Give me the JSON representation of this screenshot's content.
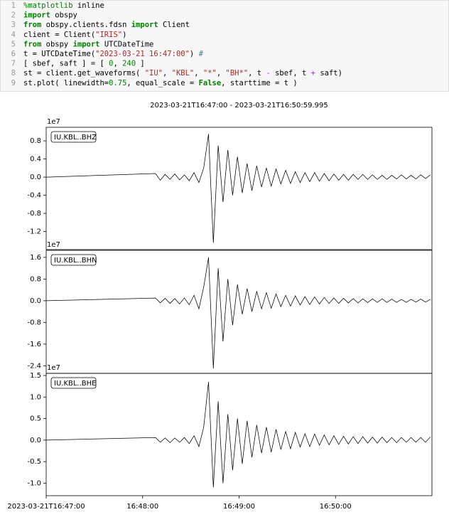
{
  "code": {
    "lines": [
      {
        "n": 1,
        "parts": [
          {
            "t": "%matplotlib",
            "c": "#008000"
          },
          {
            "t": " inline"
          }
        ]
      },
      {
        "n": 2,
        "parts": [
          {
            "t": "import",
            "c": "#008000",
            "b": true
          },
          {
            "t": " obspy"
          }
        ]
      },
      {
        "n": 3,
        "parts": [
          {
            "t": "from",
            "c": "#008000",
            "b": true
          },
          {
            "t": " obspy.clients.fdsn "
          },
          {
            "t": "import",
            "c": "#008000",
            "b": true
          },
          {
            "t": " Client"
          }
        ]
      },
      {
        "n": 4,
        "parts": [
          {
            "t": "client = Client("
          },
          {
            "t": "\"IRIS\"",
            "c": "#BA2121"
          },
          {
            "t": ")"
          }
        ]
      },
      {
        "n": 5,
        "parts": [
          {
            "t": "from",
            "c": "#008000",
            "b": true
          },
          {
            "t": " obspy "
          },
          {
            "t": "import",
            "c": "#008000",
            "b": true
          },
          {
            "t": " UTCDateTime"
          }
        ]
      },
      {
        "n": 6,
        "parts": [
          {
            "t": "t = UTCDateTime("
          },
          {
            "t": "\"2023-03-21 16:47:00\"",
            "c": "#BA2121"
          },
          {
            "t": ") "
          },
          {
            "t": "#",
            "c": "#3D7B7B"
          }
        ]
      },
      {
        "n": 7,
        "parts": [
          {
            "t": "[ sbef, saft ] = [ "
          },
          {
            "t": "0",
            "c": "#008000"
          },
          {
            "t": ", "
          },
          {
            "t": "240",
            "c": "#008000"
          },
          {
            "t": " ]"
          }
        ]
      },
      {
        "n": 8,
        "parts": [
          {
            "t": "st = client.get_waveforms( "
          },
          {
            "t": "\"IU\"",
            "c": "#BA2121"
          },
          {
            "t": ", "
          },
          {
            "t": "\"KBL\"",
            "c": "#BA2121"
          },
          {
            "t": ", "
          },
          {
            "t": "\"*\"",
            "c": "#BA2121"
          },
          {
            "t": ", "
          },
          {
            "t": "\"BH*\"",
            "c": "#BA2121"
          },
          {
            "t": ", t "
          },
          {
            "t": "-",
            "c": "#AA22FF"
          },
          {
            "t": " sbef, t "
          },
          {
            "t": "+",
            "c": "#AA22FF"
          },
          {
            "t": " saft)"
          }
        ]
      },
      {
        "n": 9,
        "parts": [
          {
            "t": "st.plot( linewidth="
          },
          {
            "t": "0.75",
            "c": "#008000"
          },
          {
            "t": ", equal_scale = "
          },
          {
            "t": "False",
            "c": "#008000",
            "b": true
          },
          {
            "t": ", starttime = t )"
          }
        ]
      }
    ]
  },
  "chart_data": [
    {
      "type": "line",
      "title": "2023-03-21T16:47:00  -  2023-03-21T16:50:59.995",
      "label": "IU.KBL..BHZ",
      "offset_label": "1e7",
      "color": "#000000",
      "xlim": [
        0,
        240
      ],
      "ylim": [
        -1.6,
        1.1
      ],
      "yticks": [
        0.8,
        0.4,
        {
          "value": 0,
          "label": "0.0"
        },
        -0.4,
        -0.8,
        -1.2
      ],
      "x": [
        0,
        68,
        71,
        74,
        77,
        80,
        83,
        86,
        89,
        92,
        95,
        98,
        101,
        104,
        107,
        110,
        113,
        116,
        119,
        122,
        125,
        128,
        131,
        134,
        137,
        140,
        143,
        146,
        149,
        152,
        155,
        158,
        161,
        164,
        167,
        170,
        173,
        176,
        179,
        182,
        185,
        188,
        191,
        194,
        197,
        200,
        203,
        206,
        209,
        212,
        215,
        218,
        221,
        224,
        227,
        230,
        233,
        236,
        239
      ],
      "values": [
        0,
        0.08,
        -0.07,
        0.06,
        -0.05,
        0.07,
        -0.06,
        0.05,
        -0.08,
        0.1,
        -0.12,
        0.2,
        0.95,
        -1.45,
        0.7,
        -0.55,
        0.6,
        -0.4,
        0.45,
        -0.35,
        0.3,
        -0.3,
        0.25,
        -0.22,
        0.2,
        -0.2,
        0.18,
        -0.15,
        0.15,
        -0.14,
        0.12,
        -0.12,
        0.1,
        -0.1,
        0.1,
        -0.09,
        0.08,
        -0.08,
        0.07,
        -0.07,
        0.06,
        -0.07,
        0.06,
        -0.05,
        0.06,
        -0.05,
        0.05,
        -0.05,
        0.04,
        -0.05,
        0.04,
        -0.04,
        0.05,
        -0.04,
        0.04,
        -0.04,
        0.05,
        -0.03,
        0.05
      ]
    },
    {
      "type": "line",
      "label": "IU.KBL..BHN",
      "offset_label": "1e7",
      "color": "#000000",
      "xlim": [
        0,
        240
      ],
      "ylim": [
        -2.68,
        1.86
      ],
      "yticks": [
        1.6,
        0.8,
        {
          "value": 0,
          "label": "0.0"
        },
        -0.8,
        -1.6,
        -2.4
      ],
      "x": [
        0,
        68,
        71,
        74,
        77,
        80,
        83,
        86,
        89,
        92,
        95,
        98,
        101,
        104,
        107,
        110,
        113,
        116,
        119,
        122,
        125,
        128,
        131,
        134,
        137,
        140,
        143,
        146,
        149,
        152,
        155,
        158,
        161,
        164,
        167,
        170,
        173,
        176,
        179,
        182,
        185,
        188,
        191,
        194,
        197,
        200,
        203,
        206,
        209,
        212,
        215,
        218,
        221,
        224,
        227,
        230,
        233,
        236,
        239
      ],
      "values": [
        0,
        0.1,
        -0.08,
        0.09,
        -0.1,
        0.08,
        -0.12,
        0.1,
        -0.15,
        0.2,
        -0.3,
        0.5,
        1.6,
        -2.5,
        1.2,
        -1.5,
        0.8,
        -0.9,
        0.6,
        -0.5,
        0.45,
        -0.4,
        0.35,
        -0.3,
        0.3,
        -0.28,
        0.25,
        -0.22,
        0.2,
        -0.2,
        0.18,
        -0.16,
        0.15,
        -0.14,
        0.14,
        -0.12,
        0.12,
        -0.1,
        0.1,
        -0.1,
        0.09,
        -0.08,
        0.08,
        -0.08,
        0.07,
        -0.07,
        0.07,
        -0.06,
        0.07,
        -0.06,
        0.06,
        -0.06,
        0.05,
        -0.06,
        0.05,
        -0.05,
        0.06,
        -0.05,
        0.05
      ]
    },
    {
      "type": "line",
      "label": "IU.KBL..BHE",
      "offset_label": "1e7",
      "color": "#000000",
      "xlim": [
        0,
        240
      ],
      "ylim": [
        -1.29,
        1.55
      ],
      "yticks": [
        1.5,
        {
          "value": 1,
          "label": "1.0"
        },
        0.5,
        {
          "value": 0,
          "label": "0.0"
        },
        -0.5,
        {
          "value": -1,
          "label": "-1.0"
        }
      ],
      "xticks": [
        {
          "value": 0,
          "label": "2023-03-21T16:47:00"
        },
        {
          "value": 60,
          "label": "16:48:00"
        },
        {
          "value": 120,
          "label": "16:49:00"
        },
        {
          "value": 180,
          "label": "16:50:00"
        }
      ],
      "x": [
        0,
        68,
        71,
        74,
        77,
        80,
        83,
        86,
        89,
        92,
        95,
        98,
        101,
        104,
        107,
        110,
        113,
        116,
        119,
        122,
        125,
        128,
        131,
        134,
        137,
        140,
        143,
        146,
        149,
        152,
        155,
        158,
        161,
        164,
        167,
        170,
        173,
        176,
        179,
        182,
        185,
        188,
        191,
        194,
        197,
        200,
        203,
        206,
        209,
        212,
        215,
        218,
        221,
        224,
        227,
        230,
        233,
        236,
        239
      ],
      "values": [
        0,
        0.06,
        -0.05,
        0.05,
        -0.06,
        0.05,
        -0.05,
        0.06,
        -0.08,
        0.1,
        -0.15,
        0.3,
        1.35,
        -1.1,
        0.9,
        -1.0,
        0.6,
        -0.7,
        0.5,
        -0.55,
        0.45,
        -0.4,
        0.35,
        -0.3,
        0.3,
        -0.28,
        0.25,
        -0.22,
        0.2,
        -0.2,
        0.18,
        -0.16,
        0.15,
        -0.15,
        0.14,
        -0.12,
        0.12,
        -0.11,
        0.1,
        -0.1,
        0.09,
        -0.09,
        0.08,
        -0.08,
        0.08,
        -0.07,
        0.07,
        -0.07,
        0.07,
        -0.06,
        0.06,
        -0.06,
        0.06,
        -0.05,
        0.06,
        -0.05,
        0.06,
        -0.05,
        0.07
      ]
    }
  ]
}
